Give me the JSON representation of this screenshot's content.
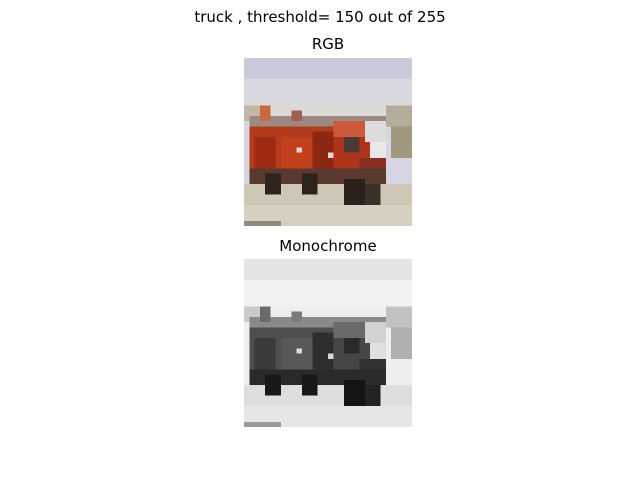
{
  "figure": {
    "suptitle": "truck , threshold= 150 out of 255"
  },
  "panels": {
    "rgb": {
      "title": "RGB",
      "colors": {
        "sky": "#d2d4e0",
        "ground": "#b4ac9a",
        "truck_red": "#b03418",
        "truck_dark": "#3a2a22",
        "chrome": "#e6e6e8"
      }
    },
    "mono": {
      "title": "Monochrome",
      "colors": {
        "sky": "#f2f2f2",
        "ground": "#e2e2e2",
        "truck_body": "#4a4a4a",
        "truck_dark": "#1e1e1e",
        "chrome": "#d8d8d8"
      }
    }
  }
}
